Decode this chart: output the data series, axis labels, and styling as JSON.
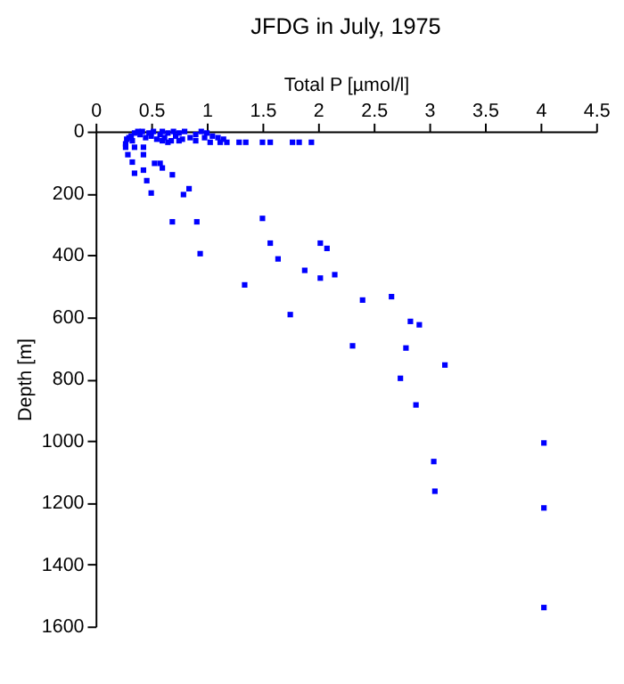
{
  "chart_data": {
    "type": "scatter",
    "title": "JFDG in July, 1975",
    "xlabel": "Total P [µmol/l]",
    "ylabel": "Depth [m]",
    "xlim": [
      0,
      4.5
    ],
    "xticks": [
      0,
      0.5,
      1,
      1.5,
      2,
      2.5,
      3,
      3.5,
      4,
      4.5
    ],
    "ylim": [
      1600,
      0
    ],
    "yticks": [
      0,
      200,
      400,
      600,
      800,
      1000,
      1200,
      1400,
      1600
    ],
    "grid": false,
    "marker": "square",
    "series": [
      {
        "color": "#0000ff",
        "x": [
          0.3,
          0.32,
          0.35,
          0.38,
          0.4,
          0.42,
          0.45,
          0.48,
          0.5,
          0.52,
          0.55,
          0.58,
          0.6,
          0.62,
          0.65,
          0.68,
          0.7,
          0.72,
          0.75,
          0.78,
          0.8,
          0.85,
          0.9,
          0.95,
          0.98,
          1.0,
          1.05,
          1.1,
          1.15,
          0.28,
          0.33,
          0.6,
          0.75,
          0.9,
          0.27,
          0.65,
          1.03,
          1.12,
          1.18,
          1.29,
          1.35,
          1.5,
          1.57,
          1.77,
          1.83,
          1.94,
          0.27,
          0.29,
          0.35,
          0.43,
          0.43,
          0.33,
          0.53,
          0.58,
          0.6,
          0.43,
          0.35,
          0.69,
          0.46,
          0.5,
          0.84,
          0.79,
          0.69,
          0.91,
          1.5,
          1.57,
          2.02,
          2.08,
          0.94,
          1.64,
          1.88,
          2.02,
          2.15,
          1.34,
          2.4,
          2.66,
          1.75,
          2.83,
          2.91,
          2.31,
          2.79,
          3.14,
          2.74,
          2.88,
          4.03,
          3.04,
          3.05,
          4.03,
          4.03
        ],
        "values": [
          20,
          15,
          5,
          0,
          10,
          0,
          20,
          5,
          15,
          0,
          25,
          10,
          0,
          20,
          5,
          30,
          0,
          15,
          5,
          25,
          0,
          20,
          10,
          0,
          20,
          5,
          15,
          20,
          25,
          25,
          30,
          30,
          30,
          30,
          40,
          35,
          35,
          35,
          35,
          35,
          35,
          35,
          35,
          35,
          35,
          35,
          51,
          75,
          51,
          51,
          75,
          99,
          103,
          103,
          118,
          125,
          135,
          140,
          159,
          199,
          185,
          204,
          292,
          292,
          281,
          361,
          361,
          378,
          395,
          412,
          449,
          474,
          463,
          496,
          545,
          534,
          592,
          614,
          625,
          693,
          700,
          755,
          798,
          884,
          1007,
          1067,
          1163,
          1217,
          1539
        ]
      }
    ]
  }
}
